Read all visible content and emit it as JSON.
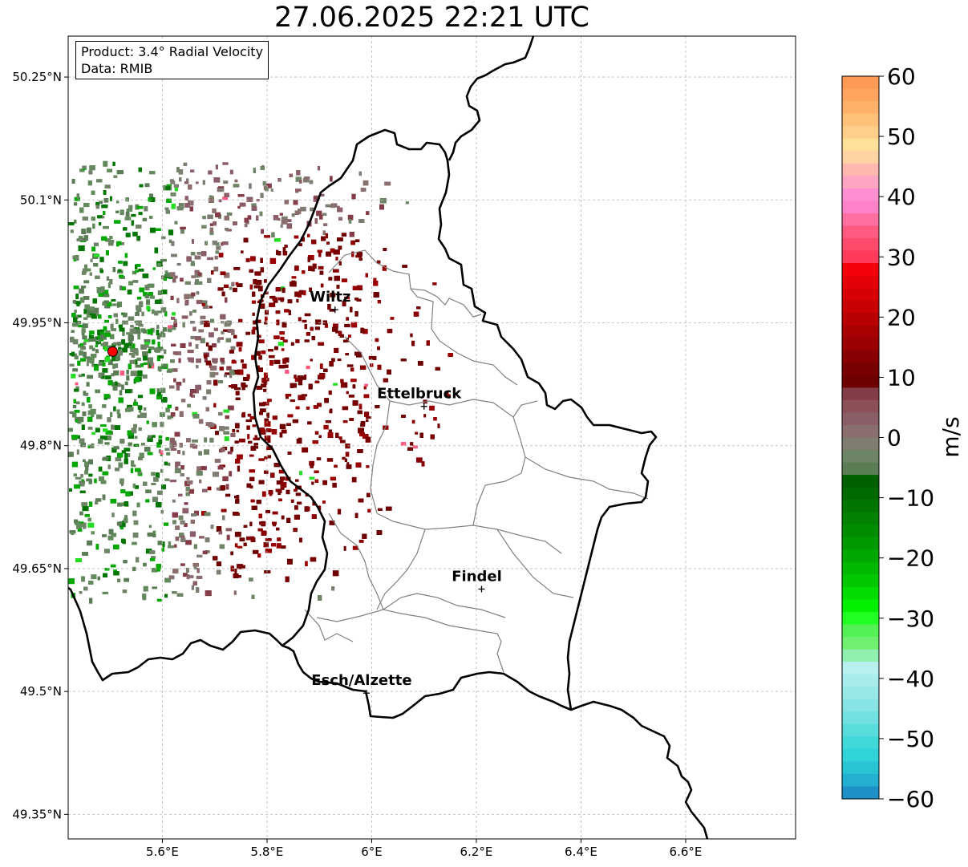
{
  "title": "27.06.2025 22:21 UTC",
  "info": {
    "product": "Product: 3.4° Radial Velocity",
    "data": "Data: RMIB"
  },
  "map": {
    "lon_range": [
      5.42,
      6.81
    ],
    "lat_range": [
      49.32,
      50.3
    ],
    "lat_ticks": [
      "50.25°N",
      "50.1°N",
      "49.95°N",
      "49.8°N",
      "49.65°N",
      "49.5°N",
      "49.35°N"
    ],
    "lon_ticks": [
      "5.6°E",
      "5.8°E",
      "6°E",
      "6.2°E",
      "6.4°E",
      "6.6°E"
    ],
    "grid": true,
    "radar_site": {
      "lon": 5.505,
      "lat": 49.915,
      "color": "#ff0000"
    },
    "cities": [
      {
        "name": "Wiltz",
        "lon": 5.93,
        "lat": 49.966
      },
      {
        "name": "Ettelbruck",
        "lon": 6.1,
        "lat": 49.848
      },
      {
        "name": "Findel",
        "lon": 6.21,
        "lat": 49.625
      },
      {
        "name": "Esch/Alzette",
        "lon": 5.99,
        "lat": 49.498
      }
    ]
  },
  "colorbar": {
    "label": "m/s",
    "range": [
      -60,
      60
    ],
    "ticks": [
      "60",
      "50",
      "40",
      "30",
      "20",
      "10",
      "0",
      "−10",
      "−20",
      "−30",
      "−40",
      "−50",
      "−60"
    ],
    "colors": [
      "#ff9a55",
      "#ffa55e",
      "#ffb169",
      "#ffc07a",
      "#ffce88",
      "#ffe099",
      "#ffd3a2",
      "#ffb8b0",
      "#ffa6c2",
      "#ff8fd0",
      "#ff82c8",
      "#ff6fa0",
      "#ff5a80",
      "#ff4a6c",
      "#ff3a5a",
      "#f40008",
      "#e40006",
      "#d60005",
      "#c80004",
      "#b80003",
      "#a80002",
      "#980001",
      "#880001",
      "#780000",
      "#6f0000",
      "#843c48",
      "#8c5058",
      "#8a5e66",
      "#8b6e6e",
      "#7f7c72",
      "#6e8466",
      "#5b7d56",
      "#006000",
      "#006a00",
      "#007600",
      "#008200",
      "#008e00",
      "#009a00",
      "#00a800",
      "#00b800",
      "#00c800",
      "#00dc00",
      "#00f000",
      "#22ff22",
      "#55f055",
      "#70f070",
      "#90f0b0",
      "#b8f0f0",
      "#a8ecec",
      "#98e8e8",
      "#88e4e4",
      "#70e0e0",
      "#58dcdc",
      "#40d8d8",
      "#30d4d8",
      "#28c4d4",
      "#24b0d0",
      "#2090c8"
    ]
  }
}
